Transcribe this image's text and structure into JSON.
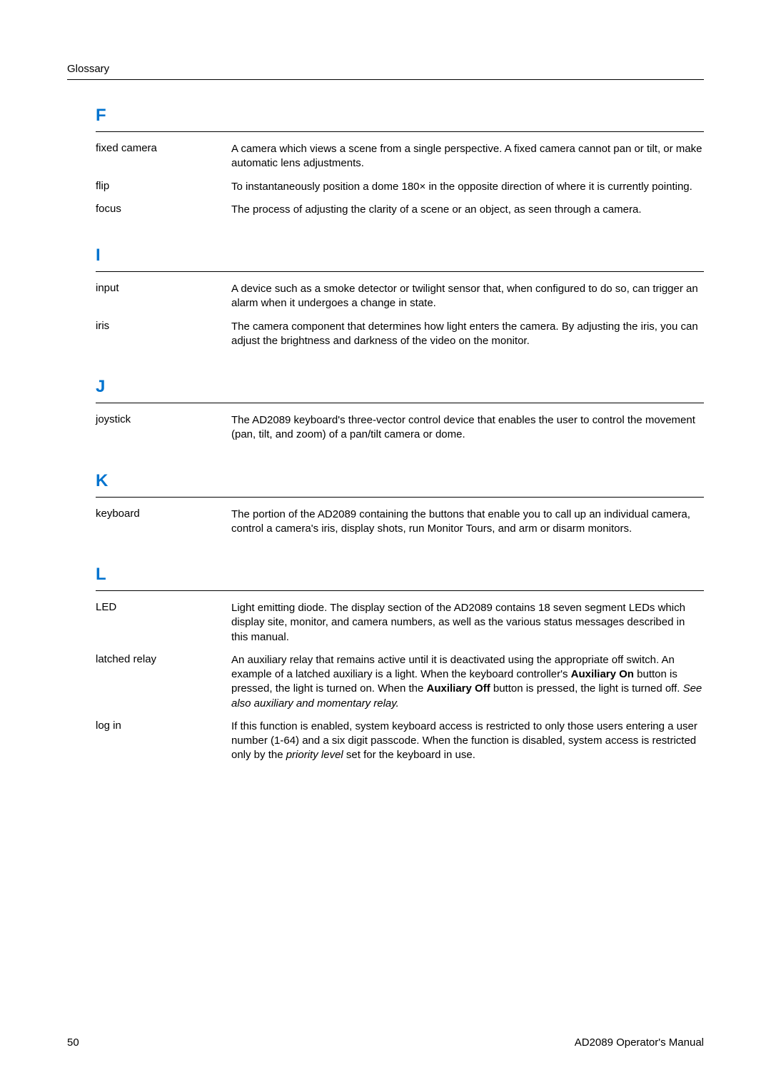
{
  "header": "Glossary",
  "colors": {
    "letter": "#0073cf",
    "text": "#000000",
    "rule": "#000000",
    "background": "#ffffff"
  },
  "typography": {
    "body_font": "Arial",
    "body_size_pt": 11,
    "letter_size_pt": 18,
    "letter_weight": "bold"
  },
  "sections": [
    {
      "letter": "F",
      "entries": [
        {
          "term": "fixed camera",
          "def_plain": "A camera which views a scene from a single perspective. A fixed camera cannot pan or tilt, or make automatic lens adjustments."
        },
        {
          "term": "flip",
          "def_plain": "To instantaneously position a dome 180× in the opposite direction of where it is currently pointing."
        },
        {
          "term": "focus",
          "def_plain": "The process of adjusting the clarity of a scene or an object, as seen through a camera."
        }
      ]
    },
    {
      "letter": "I",
      "entries": [
        {
          "term": "input",
          "def_plain": "A device such as a smoke detector or twilight sensor that, when configured to do so, can trigger an alarm when it undergoes a change in state."
        },
        {
          "term": "iris",
          "def_plain": "The camera component that determines how light enters the camera. By adjusting the iris, you can adjust the brightness and darkness of the video on the monitor."
        }
      ]
    },
    {
      "letter": "J",
      "entries": [
        {
          "term": "joystick",
          "def_plain": "The AD2089 keyboard's three-vector control device that enables the user to control the movement (pan, tilt, and zoom) of a pan/tilt camera or dome."
        }
      ]
    },
    {
      "letter": "K",
      "entries": [
        {
          "term": "keyboard",
          "def_plain": "The portion of the AD2089 containing the buttons that enable you to call up an individual camera, control a camera's iris, display shots, run Monitor Tours, and arm or disarm monitors."
        }
      ]
    },
    {
      "letter": "L",
      "entries": [
        {
          "term": "LED",
          "def_plain": "Light emitting diode. The display section of the AD2089 contains 18 seven segment  LEDs which display site, monitor, and camera numbers, as well as the various status messages described in this manual."
        },
        {
          "term": "latched relay",
          "def_rich": [
            {
              "t": "An auxiliary relay that remains active until it is deactivated using the appropriate off switch. An example of a latched auxiliary is a light. When the keyboard controller's "
            },
            {
              "t": "Auxiliary On",
              "b": true
            },
            {
              "t": " button is pressed, the light is turned on. When the "
            },
            {
              "t": "Auxiliary Off",
              "b": true
            },
            {
              "t": " button is pressed, the light is turned off. "
            },
            {
              "t": "See also auxiliary and momentary relay.",
              "i": true
            }
          ]
        },
        {
          "term": "log in",
          "def_rich": [
            {
              "t": "If this function is enabled, system keyboard access is restricted to only those users entering a user number (1-64) and a six digit passcode. When the function is disabled, system access is restricted only by the "
            },
            {
              "t": "priority level",
              "i": true
            },
            {
              "t": " set for the keyboard in use."
            }
          ]
        }
      ]
    }
  ],
  "footer": {
    "page_number": "50",
    "doc_title": "AD2089 Operator's Manual"
  }
}
